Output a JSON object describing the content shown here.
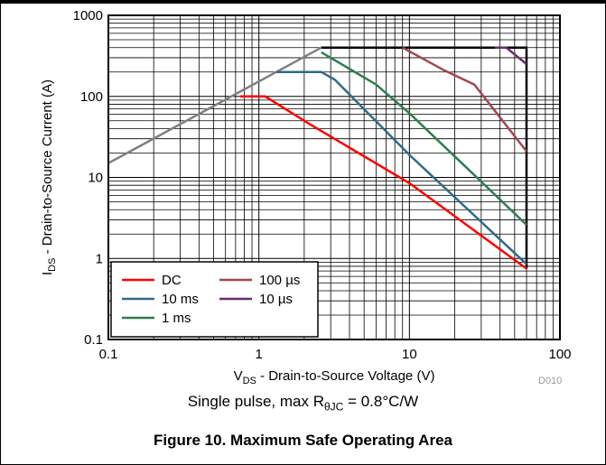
{
  "caption": "Figure 10. Maximum Safe Operating Area",
  "note": {
    "prefix": "Single pulse, max R",
    "sub": "θJC",
    "suffix": " = 0.8°C/W"
  },
  "code": "D010",
  "chart_data": {
    "type": "line",
    "xscale": "log",
    "yscale": "log",
    "xlim": [
      0.1,
      100
    ],
    "ylim": [
      0.1,
      1000
    ],
    "grid": true,
    "legend_position": "bottom-left",
    "xlabel": {
      "main": "V",
      "sub": "DS",
      "rest": " - Drain-to-Source Voltage (V)"
    },
    "ylabel": {
      "main": "I",
      "sub": "DS",
      "rest": " - Drain-to-Source Current (A)"
    },
    "xticks": [
      {
        "value": 0.1,
        "label": "0.1"
      },
      {
        "value": 1,
        "label": "1"
      },
      {
        "value": 10,
        "label": "10"
      },
      {
        "value": 100,
        "label": "100"
      }
    ],
    "yticks": [
      {
        "value": 0.1,
        "label": "0.1"
      },
      {
        "value": 1,
        "label": "1"
      },
      {
        "value": 10,
        "label": "10"
      },
      {
        "value": 100,
        "label": "100"
      },
      {
        "value": 1000,
        "label": "1000"
      }
    ],
    "limits": [
      {
        "color": "#808080",
        "points": [
          [
            0.1,
            15
          ],
          [
            2.6,
            400
          ]
        ]
      },
      {
        "color": "#000000",
        "points": [
          [
            2.6,
            400
          ],
          [
            60,
            400
          ],
          [
            60,
            0.75
          ]
        ]
      }
    ],
    "series": [
      {
        "name": "DC",
        "color": "#ff0000",
        "points": [
          [
            0.75,
            100
          ],
          [
            1.1,
            100
          ],
          [
            2.2,
            45
          ],
          [
            10,
            8.5
          ],
          [
            60,
            0.75
          ]
        ]
      },
      {
        "name": "10 ms",
        "color": "#2e6b8a",
        "points": [
          [
            1.3,
            200
          ],
          [
            2.6,
            200
          ],
          [
            3.2,
            160
          ],
          [
            10,
            19
          ],
          [
            60,
            0.85
          ]
        ]
      },
      {
        "name": "1 ms",
        "color": "#2e7d4f",
        "points": [
          [
            2.6,
            350
          ],
          [
            6,
            140
          ],
          [
            10,
            62
          ],
          [
            60,
            2.6
          ]
        ]
      },
      {
        "name": "100 µs",
        "color": "#a0474e",
        "points": [
          [
            9,
            400
          ],
          [
            17,
            210
          ],
          [
            27,
            140
          ],
          [
            60,
            21
          ]
        ]
      },
      {
        "name": "10 µs",
        "color": "#6b2c6b",
        "points": [
          [
            37,
            400
          ],
          [
            44,
            400
          ],
          [
            60,
            250
          ]
        ]
      }
    ]
  }
}
